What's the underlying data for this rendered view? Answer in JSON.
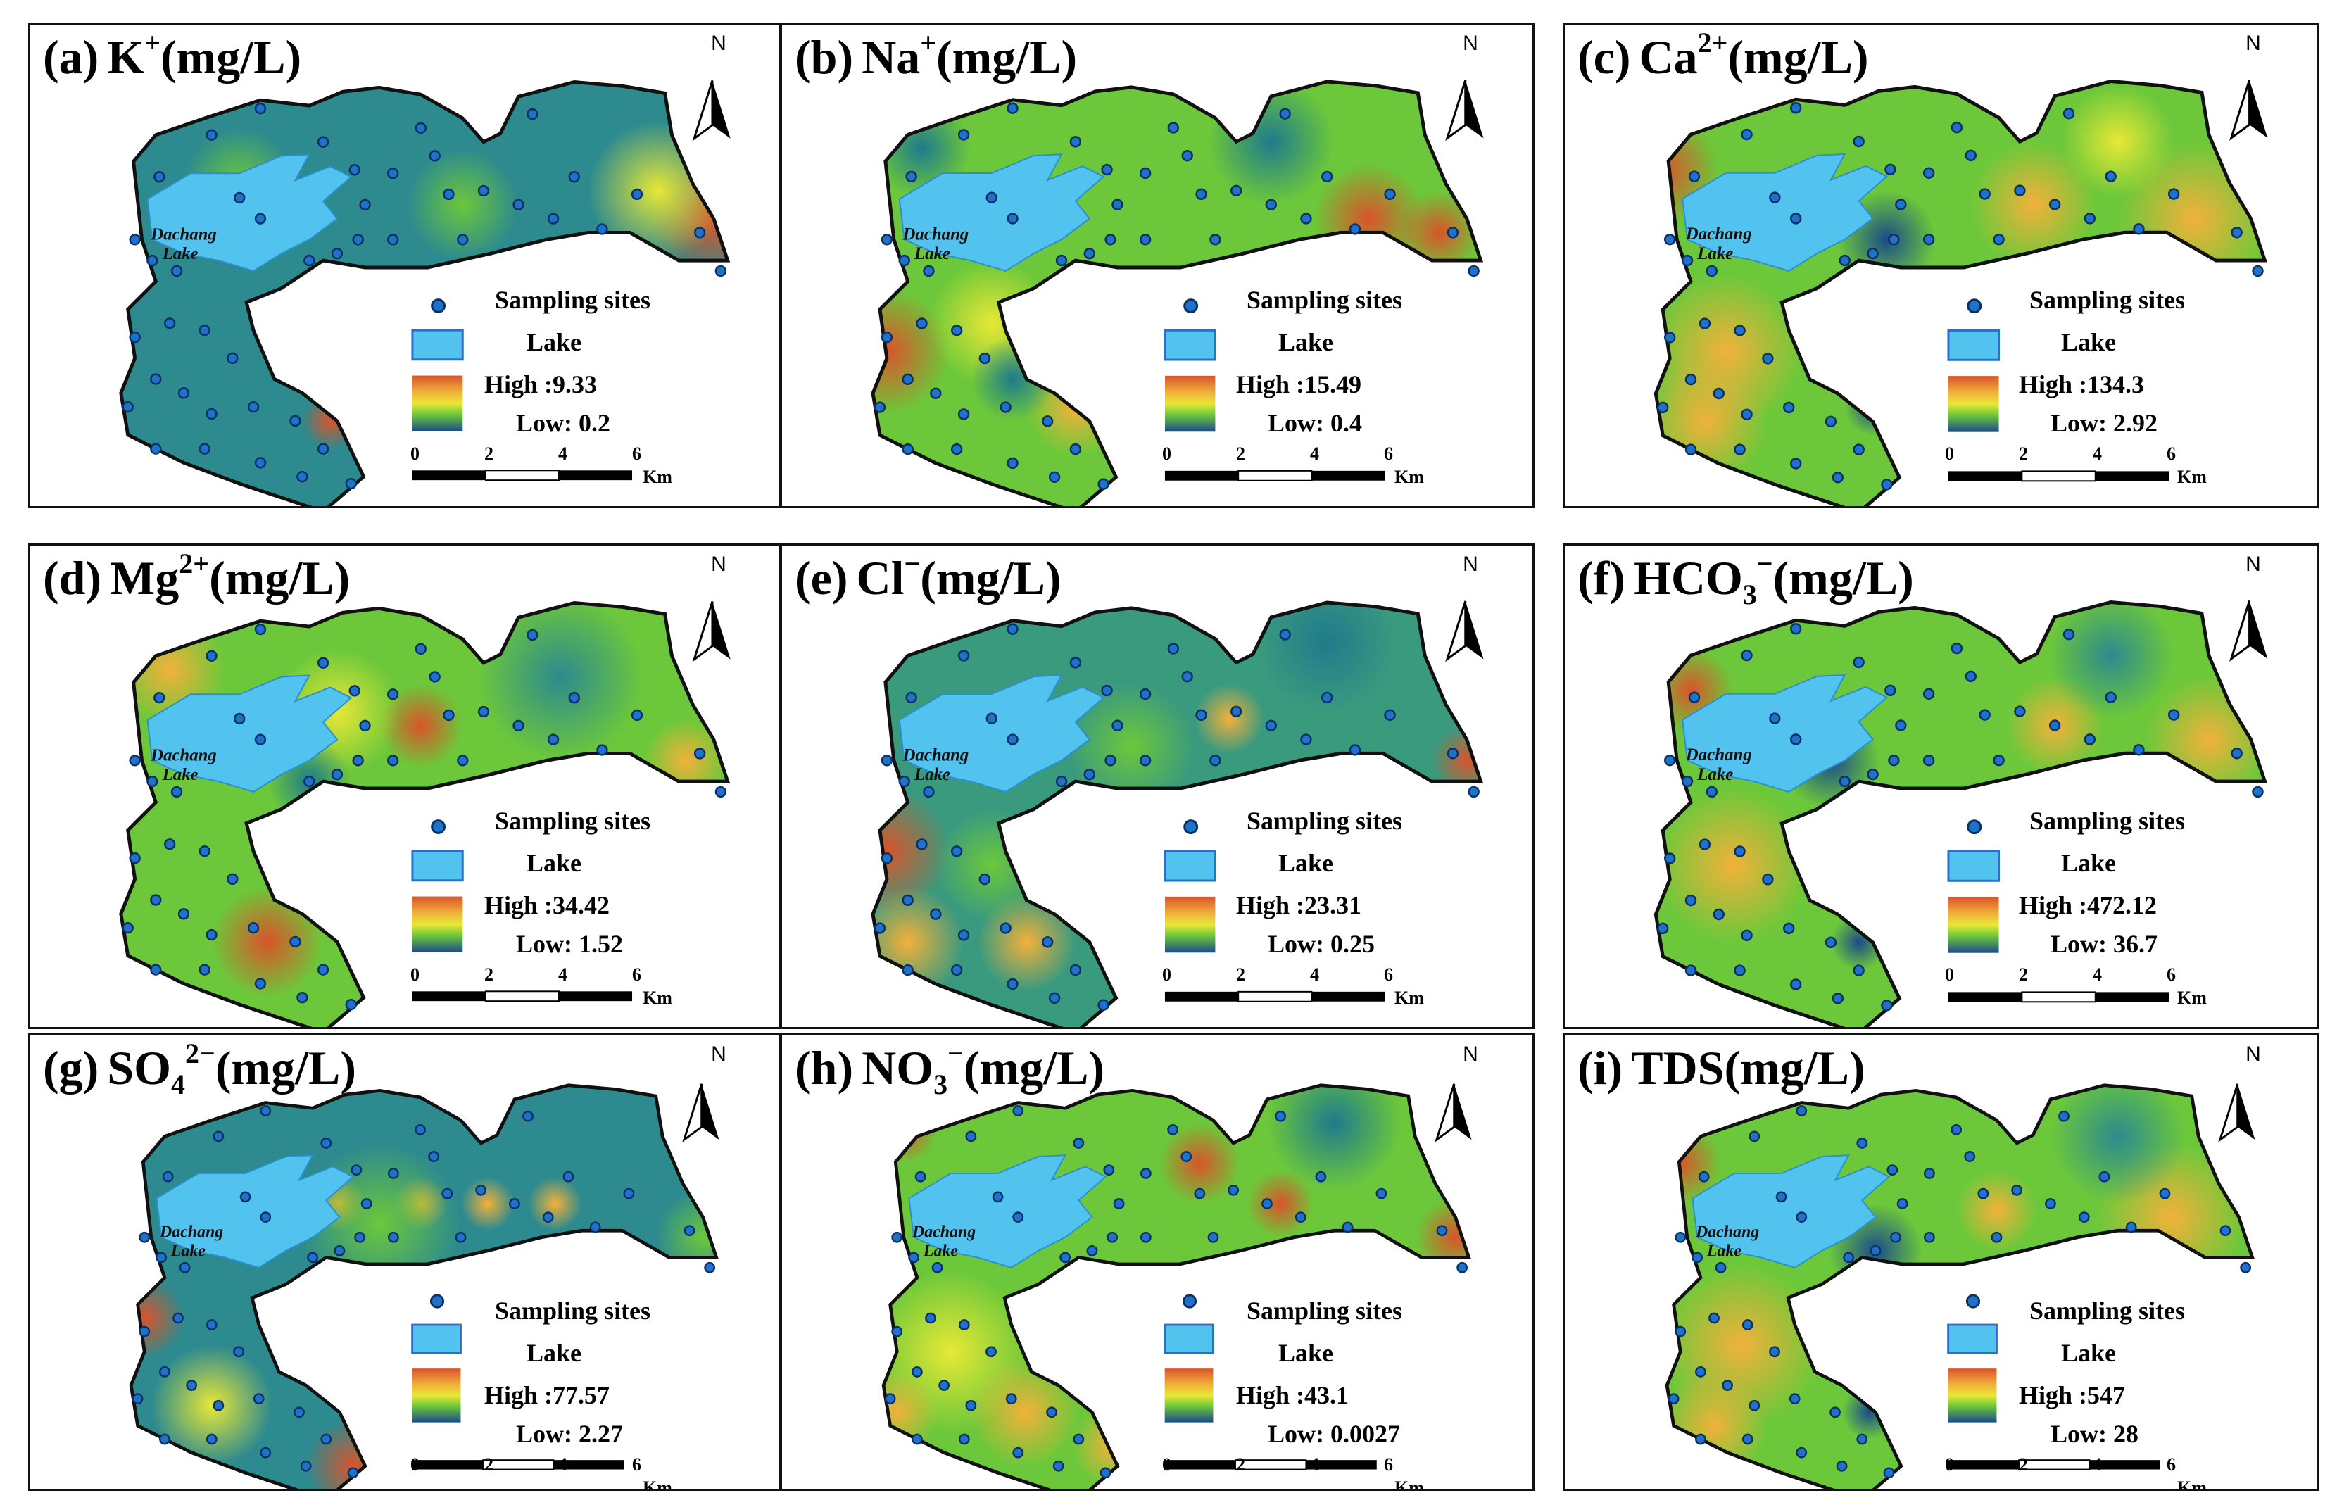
{
  "figure": {
    "lake_label": [
      "Dachang",
      "Lake"
    ],
    "legend": {
      "sampling": "Sampling sites",
      "lake": "Lake",
      "high_prefix": "High :",
      "low_prefix": "Low: "
    },
    "scale": {
      "ticks": [
        "0",
        "2",
        "4",
        "6"
      ],
      "unit": "Km"
    },
    "north": "N",
    "colors": {
      "high": "#d9542a",
      "mid_high": "#f2b13a",
      "mid": "#e8e836",
      "mid_low": "#6cc83a",
      "low": "#1f7a8c",
      "lowest": "#1b4b8a",
      "lake": "#52c2ee",
      "site": "#1e72c8",
      "boundary": "#111111"
    }
  },
  "panels": [
    {
      "id": "a",
      "label": "(a)",
      "ion": "K",
      "sup": "+",
      "sub": "",
      "unit": "(mg/L)",
      "high": "9.33",
      "low": "0.2"
    },
    {
      "id": "b",
      "label": "(b)",
      "ion": "Na",
      "sup": "+",
      "sub": "",
      "unit": "(mg/L)",
      "high": "15.49",
      "low": "0.4"
    },
    {
      "id": "c",
      "label": "(c)",
      "ion": "Ca",
      "sup": "2+",
      "sub": "",
      "unit": "(mg/L)",
      "high": "134.3",
      "low": "2.92"
    },
    {
      "id": "d",
      "label": "(d)",
      "ion": "Mg",
      "sup": "2+",
      "sub": "",
      "unit": "(mg/L)",
      "high": "34.42",
      "low": "1.52"
    },
    {
      "id": "e",
      "label": "(e)",
      "ion": "Cl",
      "sup": "−",
      "sub": "",
      "unit": "(mg/L)",
      "high": "23.31",
      "low": "0.25"
    },
    {
      "id": "f",
      "label": "(f)",
      "ion": "HCO",
      "sup": "−",
      "sub": "3",
      "unit": "(mg/L)",
      "high": "472.12",
      "low": "36.7"
    },
    {
      "id": "g",
      "label": "(g)",
      "ion": "SO",
      "sup": "2−",
      "sub": "4",
      "unit": "(mg/L)",
      "high": "77.57",
      "low": "2.27"
    },
    {
      "id": "h",
      "label": "(h)",
      "ion": "NO",
      "sup": "−",
      "sub": "3",
      "unit": "(mg/L)",
      "high": "43.1",
      "low": "0.0027"
    },
    {
      "id": "i",
      "label": "(i)",
      "ion": "TDS",
      "sup": "",
      "sub": "",
      "unit": "(mg/L)",
      "high": "547",
      "low": "28"
    }
  ]
}
